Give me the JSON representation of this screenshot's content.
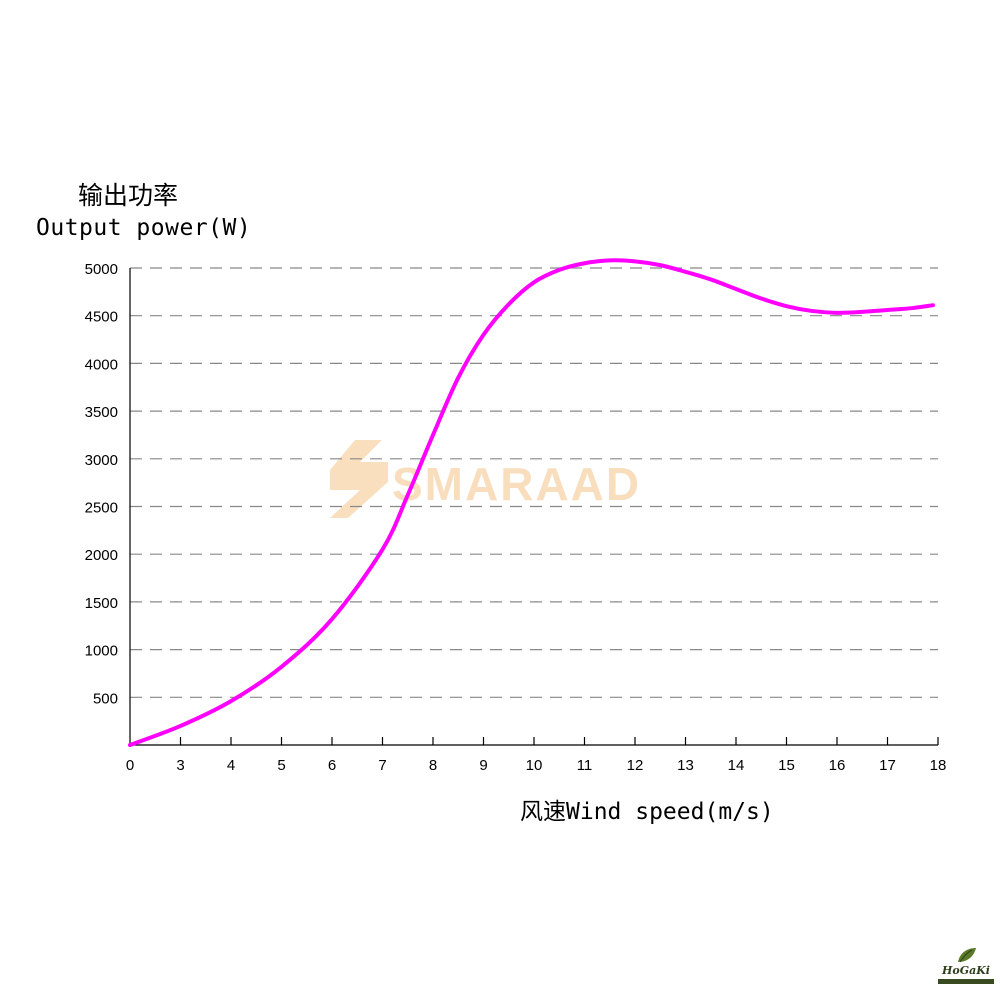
{
  "chart_data": {
    "type": "line",
    "ylabel_cn": "输出功率",
    "ylabel_en": "Output power(W)",
    "xlabel": "风速Wind speed(m/s)",
    "x_ticks": [
      "0",
      "3",
      "4",
      "5",
      "6",
      "7",
      "8",
      "9",
      "10",
      "11",
      "12",
      "13",
      "14",
      "15",
      "16",
      "17",
      "18"
    ],
    "y_ticks": [
      "500",
      "1000",
      "1500",
      "2000",
      "2500",
      "3000",
      "3500",
      "4000",
      "4500",
      "5000"
    ],
    "ylim": [
      0,
      5000
    ],
    "grid": "horizontal dashed",
    "series": [
      {
        "color": "#ff00ff",
        "points": [
          [
            0,
            0
          ],
          [
            3,
            200
          ],
          [
            4,
            460
          ],
          [
            5,
            820
          ],
          [
            6,
            1320
          ],
          [
            7,
            2050
          ],
          [
            7.5,
            2620
          ],
          [
            8,
            3250
          ],
          [
            8.5,
            3850
          ],
          [
            9,
            4300
          ],
          [
            9.5,
            4620
          ],
          [
            10,
            4850
          ],
          [
            10.5,
            4980
          ],
          [
            11,
            5050
          ],
          [
            11.5,
            5080
          ],
          [
            12,
            5070
          ],
          [
            12.5,
            5030
          ],
          [
            13,
            4960
          ],
          [
            13.5,
            4880
          ],
          [
            14,
            4780
          ],
          [
            14.5,
            4680
          ],
          [
            15,
            4600
          ],
          [
            15.5,
            4550
          ],
          [
            16,
            4530
          ],
          [
            16.5,
            4540
          ],
          [
            17,
            4560
          ],
          [
            17.5,
            4580
          ],
          [
            17.9,
            4610
          ]
        ]
      }
    ]
  },
  "watermark": {
    "text": "SMARAAD",
    "color": "#f5c48a"
  },
  "logo": {
    "text": "HoGaKi"
  }
}
